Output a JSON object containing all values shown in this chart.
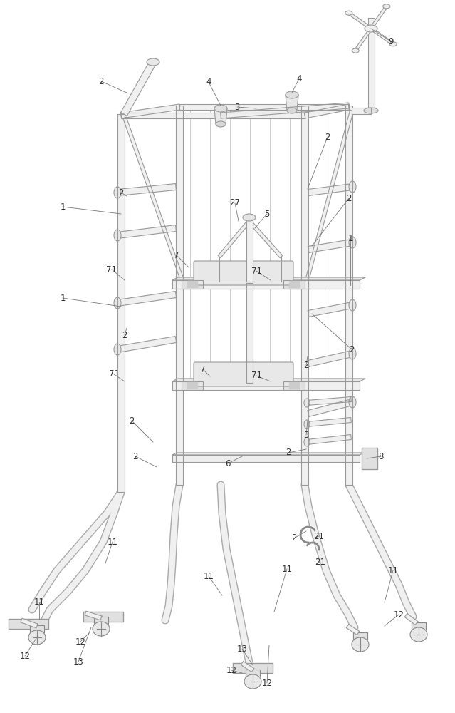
{
  "bg_color": "#ffffff",
  "lc": "#aaaaaa",
  "lcd": "#999999",
  "lc_dark": "#888888",
  "fill_light": "#f0f0f0",
  "fill_mid": "#e8e8e8",
  "label_color": "#333333",
  "fig_width": 6.39,
  "fig_height": 10.0,
  "dpi": 100
}
